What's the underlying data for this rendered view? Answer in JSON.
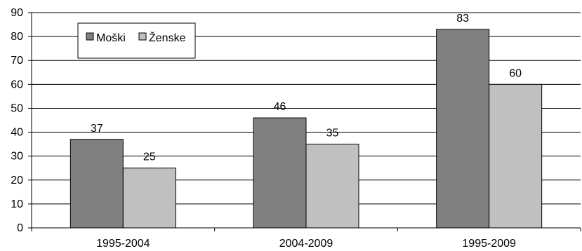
{
  "chart_data": {
    "type": "bar",
    "title": "",
    "xlabel": "",
    "ylabel": "",
    "categories": [
      "1995-2004",
      "2004-2009",
      "1995-2009"
    ],
    "series": [
      {
        "name": "Moški",
        "values": [
          37,
          46,
          83
        ],
        "color": "#808080"
      },
      {
        "name": "Ženske",
        "values": [
          25,
          35,
          60
        ],
        "color": "#c0c0c0"
      }
    ],
    "ylim": [
      0,
      90
    ],
    "yticks": [
      0,
      10,
      20,
      30,
      40,
      50,
      60,
      70,
      80,
      90
    ],
    "grid": "horizontal",
    "legend_position": "top-left"
  }
}
